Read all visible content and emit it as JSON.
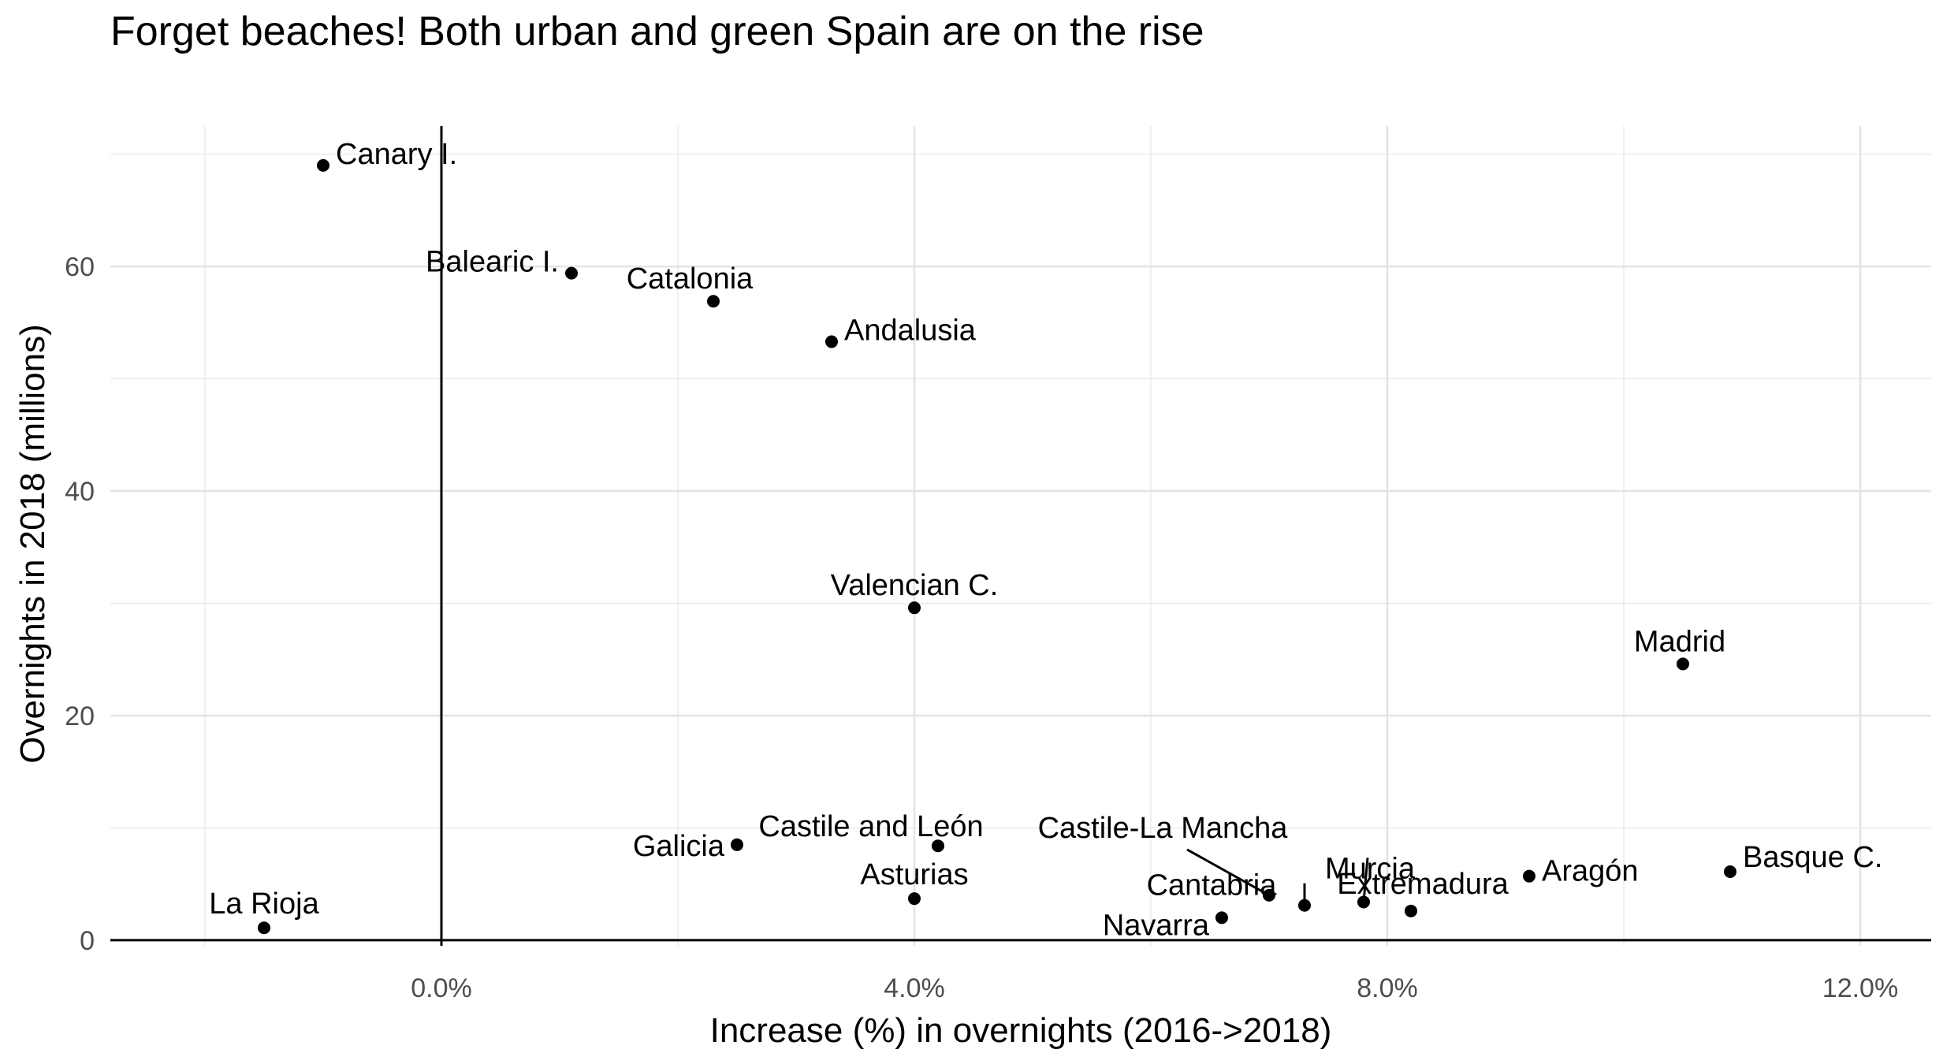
{
  "chart_data": {
    "type": "scatter",
    "title": "Forget beaches! Both urban and green Spain are on the rise",
    "xlabel": "Increase (%) in overnights (2016->2018)",
    "ylabel": "Overnights in 2018 (millions)",
    "xlim": [
      -2.8,
      12.6
    ],
    "ylim": [
      -0.5,
      72.5
    ],
    "x_ticks": [
      {
        "value": 0,
        "label": "0.0%"
      },
      {
        "value": 4,
        "label": "4.0%"
      },
      {
        "value": 8,
        "label": "8.0%"
      },
      {
        "value": 12,
        "label": "12.0%"
      }
    ],
    "y_ticks": [
      {
        "value": 0,
        "label": "0"
      },
      {
        "value": 20,
        "label": "20"
      },
      {
        "value": 40,
        "label": "40"
      },
      {
        "value": 60,
        "label": "60"
      }
    ],
    "x_minor": [
      -2,
      2,
      6,
      10
    ],
    "y_minor": [
      10,
      30,
      50,
      70
    ],
    "grid": true,
    "reference_lines": {
      "x": 0,
      "y": 0
    },
    "points": [
      {
        "name": "Canary I.",
        "x": -1.0,
        "y": 69.0
      },
      {
        "name": "Balearic I.",
        "x": 1.1,
        "y": 59.4
      },
      {
        "name": "Catalonia",
        "x": 2.3,
        "y": 56.9
      },
      {
        "name": "Andalusia",
        "x": 3.3,
        "y": 53.3
      },
      {
        "name": "Valencian C.",
        "x": 4.0,
        "y": 29.6
      },
      {
        "name": "Madrid",
        "x": 10.5,
        "y": 24.6
      },
      {
        "name": "Galicia",
        "x": 2.5,
        "y": 8.5
      },
      {
        "name": "Castile and León",
        "x": 4.2,
        "y": 8.4
      },
      {
        "name": "Asturias",
        "x": 4.0,
        "y": 3.7
      },
      {
        "name": "Castile-La Mancha",
        "x": 7.0,
        "y": 4.0
      },
      {
        "name": "Cantabria",
        "x": 7.3,
        "y": 3.1
      },
      {
        "name": "Navarra",
        "x": 6.6,
        "y": 2.0
      },
      {
        "name": "Murcia",
        "x": 7.8,
        "y": 3.4
      },
      {
        "name": "Extremadura",
        "x": 8.2,
        "y": 2.6
      },
      {
        "name": "Aragón",
        "x": 9.2,
        "y": 5.7
      },
      {
        "name": "Basque C.",
        "x": 10.9,
        "y": 6.1
      },
      {
        "name": "La Rioja",
        "x": -1.5,
        "y": 1.1
      }
    ]
  }
}
